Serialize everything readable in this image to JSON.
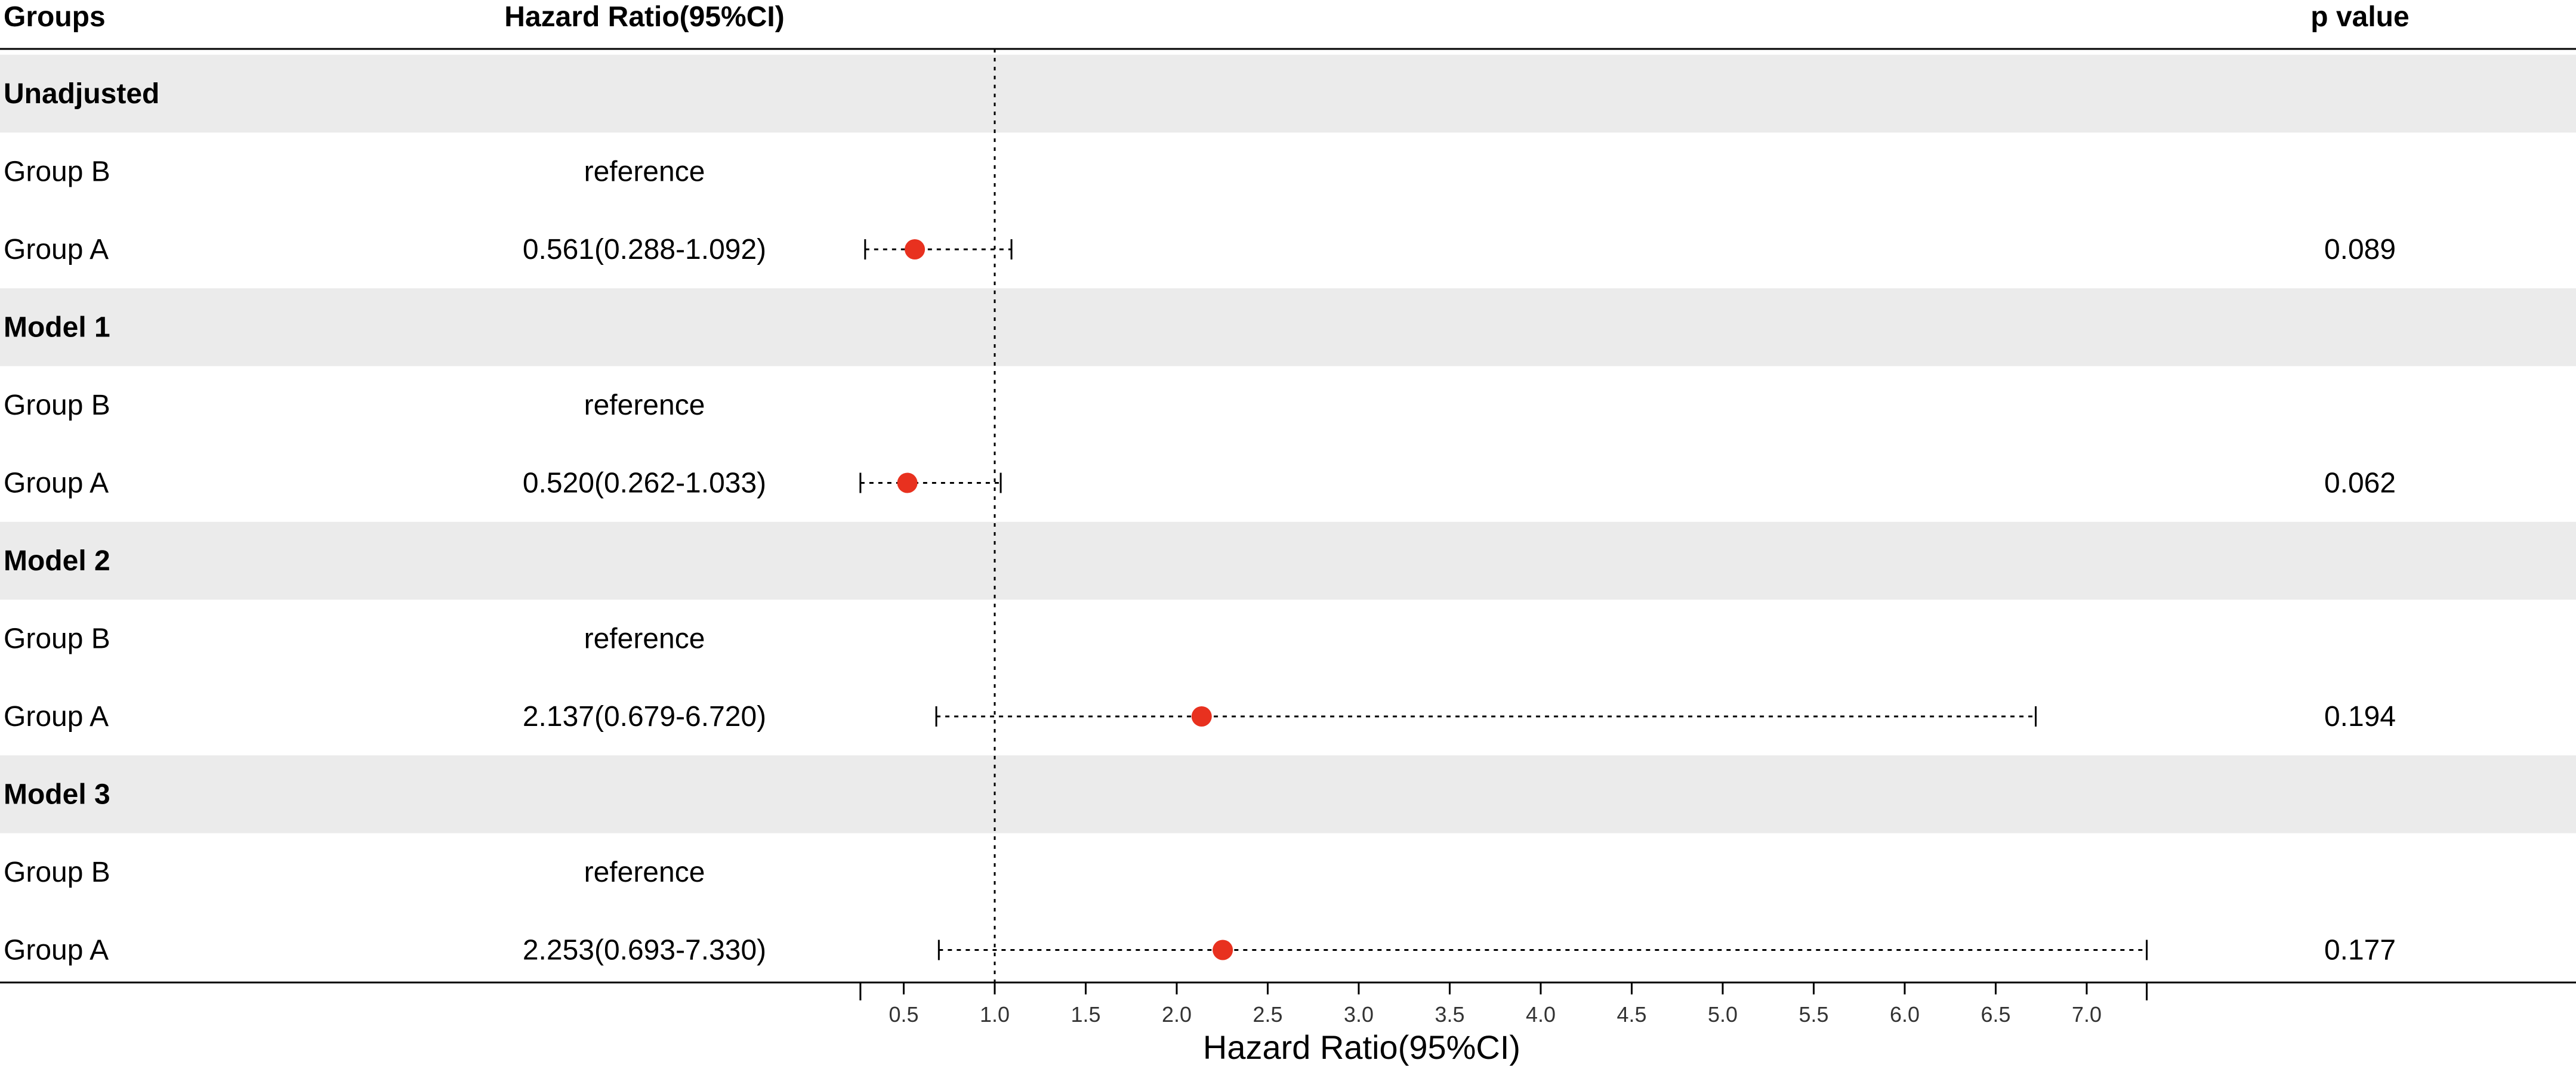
{
  "chart_data": {
    "type": "forest",
    "columns": {
      "groups": "Groups",
      "hr": "Hazard Ratio(95%CI)",
      "p": "p value"
    },
    "xlabel": "Hazard Ratio(95%CI)",
    "reference_line": 1.0,
    "xticks": [
      "0.5",
      "1.0",
      "1.5",
      "2.0",
      "2.5",
      "3.0",
      "3.5",
      "4.0",
      "4.5",
      "5.0",
      "5.5",
      "6.0",
      "6.5",
      "7.0"
    ],
    "colors": {
      "point": "#e8311f",
      "band": "#ebebeb",
      "line": "#000000"
    },
    "sections": [
      {
        "label": "Unadjusted",
        "rows": [
          {
            "group": "Group B",
            "hr_text": "reference"
          },
          {
            "group": "Group A",
            "hr_text": "0.561(0.288-1.092)",
            "hr": 0.561,
            "lower": 0.288,
            "upper": 1.092,
            "p": "0.089"
          }
        ]
      },
      {
        "label": "Model 1",
        "rows": [
          {
            "group": "Group B",
            "hr_text": "reference"
          },
          {
            "group": "Group A",
            "hr_text": "0.520(0.262-1.033)",
            "hr": 0.52,
            "lower": 0.262,
            "upper": 1.033,
            "p": "0.062"
          }
        ]
      },
      {
        "label": "Model 2",
        "rows": [
          {
            "group": "Group B",
            "hr_text": "reference"
          },
          {
            "group": "Group A",
            "hr_text": "2.137(0.679-6.720)",
            "hr": 2.137,
            "lower": 0.679,
            "upper": 6.72,
            "p": "0.194"
          }
        ]
      },
      {
        "label": "Model 3",
        "rows": [
          {
            "group": "Group B",
            "hr_text": "reference"
          },
          {
            "group": "Group A",
            "hr_text": "2.253(0.693-7.330)",
            "hr": 2.253,
            "lower": 0.693,
            "upper": 7.33,
            "p": "0.177"
          }
        ]
      }
    ]
  }
}
